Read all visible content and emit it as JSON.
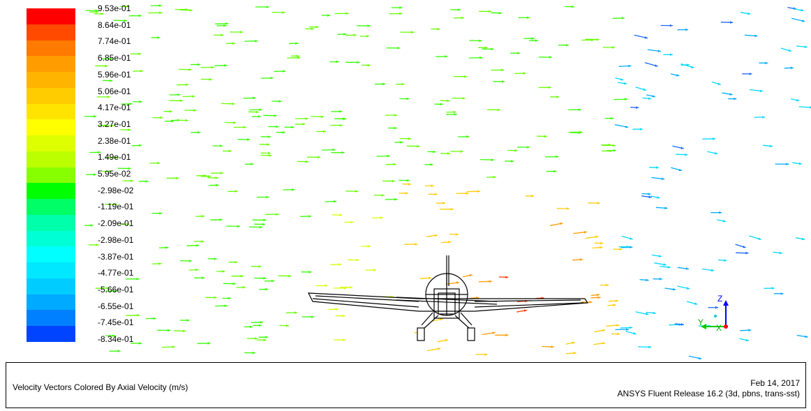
{
  "colormap": {
    "labels": [
      "9.53e-01",
      "8.64e-01",
      "7.74e-01",
      "6.85e-01",
      "5.96e-01",
      "5.06e-01",
      "4.17e-01",
      "3.27e-01",
      "2.38e-01",
      "1.49e-01",
      "5.95e-02",
      "-2.98e-02",
      "-1.19e-01",
      "-2.09e-01",
      "-2.98e-01",
      "-3.87e-01",
      "-4.77e-01",
      "-5.66e-01",
      "-6.55e-01",
      "-7.45e-01",
      "-8.34e-01"
    ],
    "colors": [
      "#ff0000",
      "#ff4a00",
      "#ff7a00",
      "#ff9c00",
      "#ffb400",
      "#ffcc00",
      "#ffe400",
      "#ffff00",
      "#ddff00",
      "#bbff00",
      "#88ff00",
      "#00ff00",
      "#00ff66",
      "#00ffaa",
      "#00ffd4",
      "#00ffff",
      "#00e8ff",
      "#00ccff",
      "#00aaff",
      "#0080ff",
      "#0044ff"
    ]
  },
  "axes": {
    "z": "Z",
    "y": "Y",
    "x": "X"
  },
  "footer": {
    "caption": "Velocity Vectors Colored By Axial Velocity (m/s)",
    "date": "Feb 14, 2017",
    "release": "ANSYS Fluent Release 16.2 (3d, pbns, trans-sst)"
  }
}
